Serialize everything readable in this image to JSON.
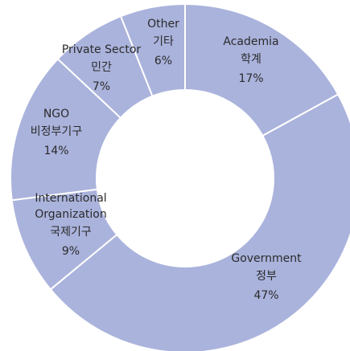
{
  "chart_data": {
    "type": "donut",
    "categories": [
      "Academia",
      "Government",
      "International Organization",
      "NGO",
      "Private Sector",
      "Other"
    ],
    "korean_labels": [
      "학계",
      "정부",
      "국제기구",
      "비정부기구",
      "민간",
      "기타"
    ],
    "values": [
      17,
      47,
      9,
      14,
      7,
      6
    ],
    "value_labels": [
      "17%",
      "47%",
      "9%",
      "14%",
      "7%",
      "6%"
    ],
    "color": "#aab3dc"
  }
}
